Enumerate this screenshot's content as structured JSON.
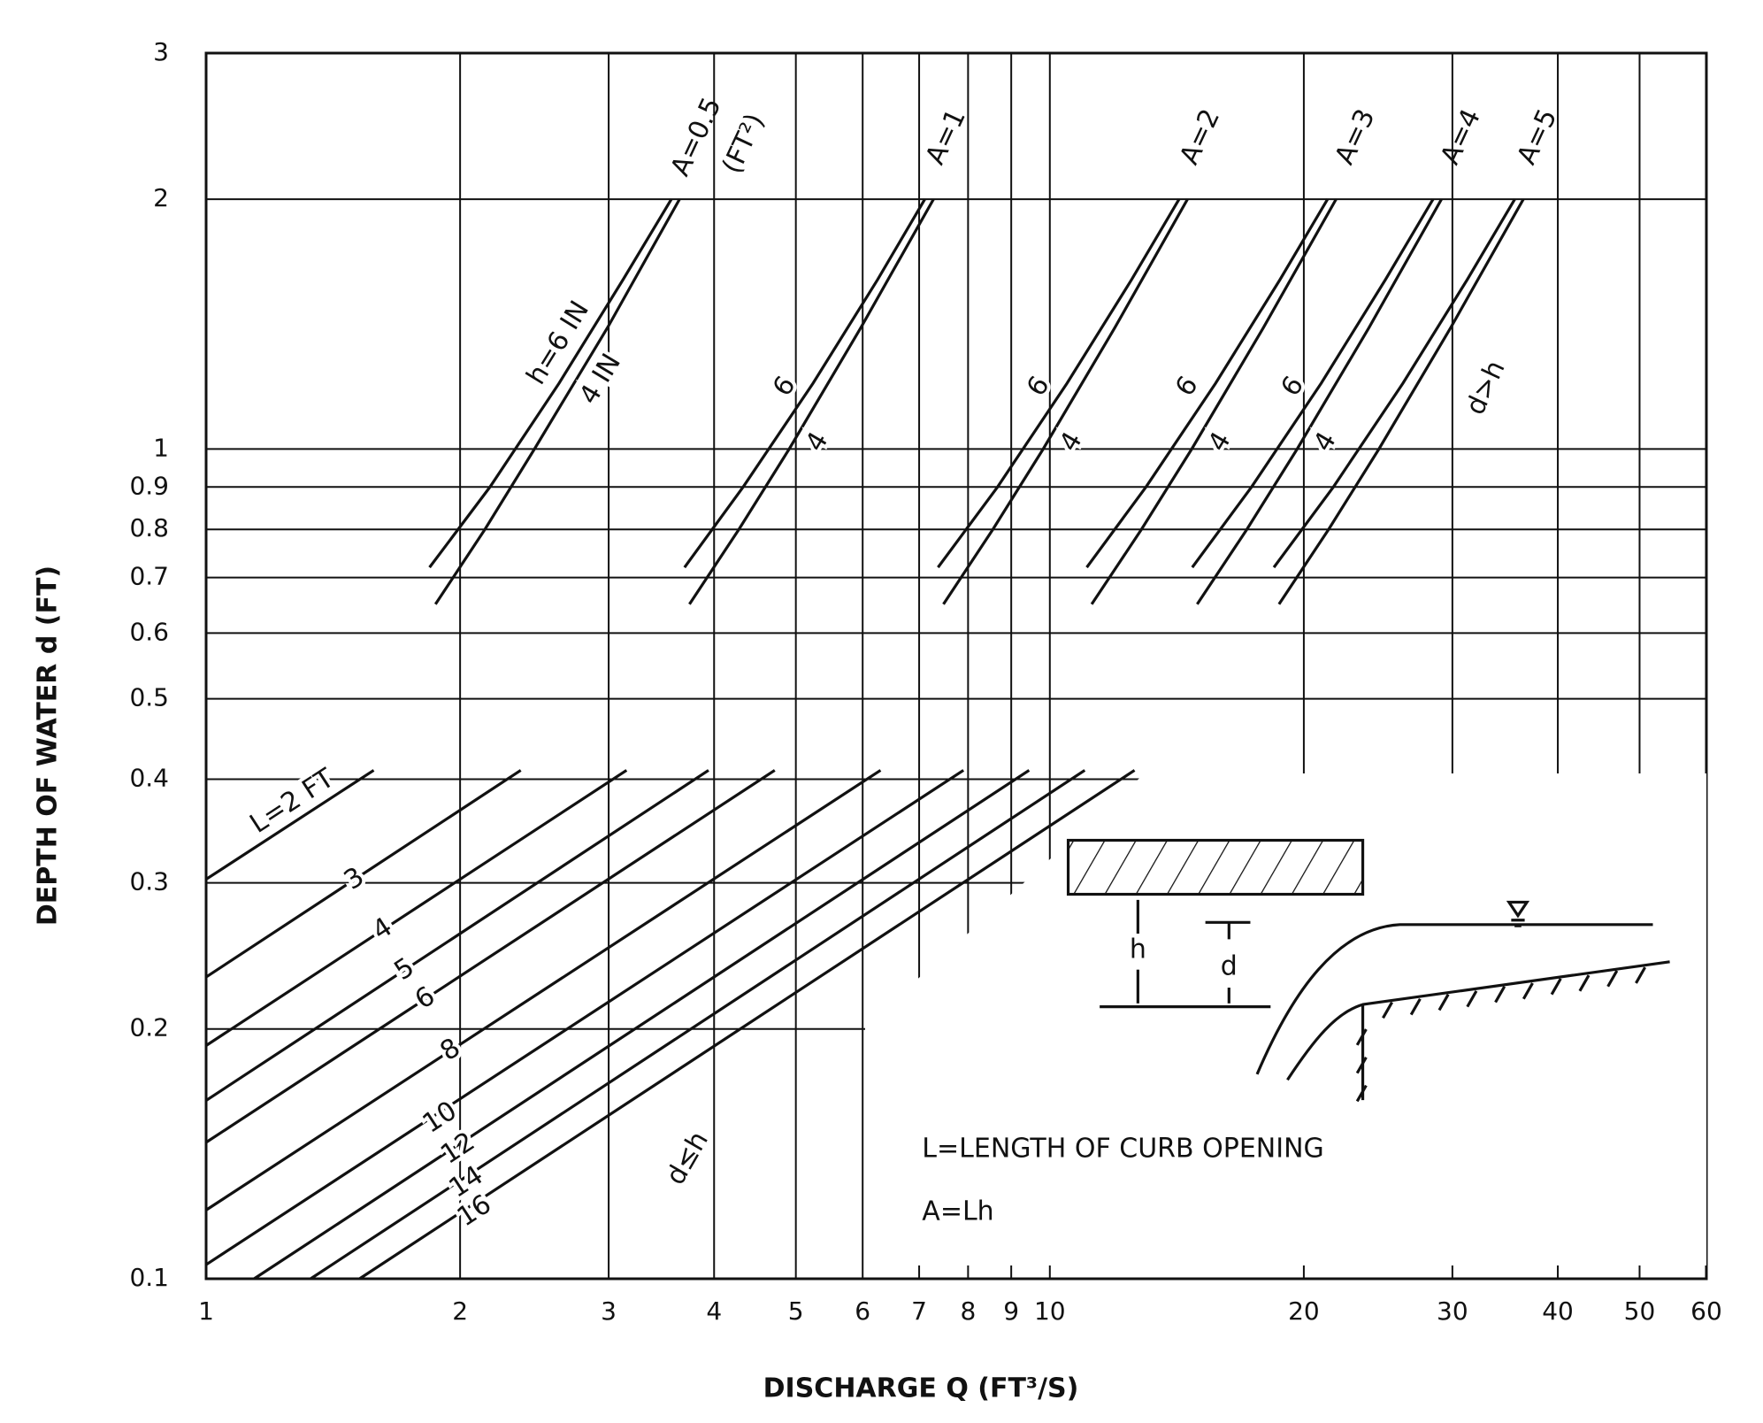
{
  "chart_data": {
    "type": "line",
    "x_label": "DISCHARGE Q (FT³/S)",
    "y_label": "DEPTH OF WATER d (FT)",
    "log_x": true,
    "log_y": true,
    "grid": true,
    "color": "#111111",
    "xlim": [
      1,
      60
    ],
    "ylim": [
      0.1,
      3
    ],
    "xticks": [
      1,
      2,
      3,
      4,
      5,
      6,
      7,
      8,
      9,
      10,
      20,
      30,
      40,
      50,
      60
    ],
    "yticks": [
      0.1,
      0.2,
      0.3,
      0.4,
      0.5,
      0.6,
      0.7,
      0.8,
      0.9,
      1,
      2,
      3
    ],
    "series": [
      {
        "name": "L=2 FT",
        "x": [
          1,
          1.58
        ],
        "values": [
          0.303,
          0.41
        ]
      },
      {
        "name": "3",
        "x": [
          1,
          2.36
        ],
        "values": [
          0.231,
          0.41
        ]
      },
      {
        "name": "4",
        "x": [
          1,
          3.15
        ],
        "values": [
          0.191,
          0.41
        ]
      },
      {
        "name": "5",
        "x": [
          1,
          3.94
        ],
        "values": [
          0.164,
          0.41
        ]
      },
      {
        "name": "6",
        "x": [
          1,
          4.72
        ],
        "values": [
          0.146,
          0.41
        ]
      },
      {
        "name": "8",
        "x": [
          1,
          6.3
        ],
        "values": [
          0.121,
          0.41
        ]
      },
      {
        "name": "10",
        "x": [
          1,
          7.9
        ],
        "values": [
          0.104,
          0.41
        ]
      },
      {
        "name": "12",
        "x": [
          1.14,
          9.45
        ],
        "values": [
          0.1,
          0.41
        ]
      },
      {
        "name": "14",
        "x": [
          1.33,
          11.0
        ],
        "values": [
          0.1,
          0.41
        ]
      },
      {
        "name": "16",
        "x": [
          1.52,
          12.6
        ],
        "values": [
          0.1,
          0.41
        ]
      },
      {
        "name": "h=6 IN",
        "x": [
          1.84,
          2.17,
          2.62,
          3.12,
          3.56
        ],
        "values": [
          0.72,
          0.9,
          1.2,
          1.6,
          2.0
        ]
      },
      {
        "name": "4 IN",
        "x": [
          1.87,
          2.14,
          2.45,
          2.99,
          3.64
        ],
        "values": [
          0.65,
          0.8,
          1.0,
          1.4,
          2.0
        ]
      },
      {
        "name": "6",
        "x": [
          3.69,
          4.33,
          5.24,
          6.25,
          7.11
        ],
        "values": [
          0.72,
          0.9,
          1.2,
          1.6,
          2.0
        ]
      },
      {
        "name": "4",
        "x": [
          3.74,
          4.28,
          4.91,
          5.97,
          7.28
        ],
        "values": [
          0.65,
          0.8,
          1.0,
          1.4,
          2.0
        ]
      },
      {
        "name": "6",
        "x": [
          7.37,
          8.67,
          10.48,
          12.5,
          14.23
        ],
        "values": [
          0.72,
          0.9,
          1.2,
          1.6,
          2.0
        ]
      },
      {
        "name": "4",
        "x": [
          7.48,
          8.56,
          9.82,
          11.94,
          14.56
        ],
        "values": [
          0.65,
          0.8,
          1.0,
          1.4,
          2.0
        ]
      },
      {
        "name": "6",
        "x": [
          11.06,
          13.0,
          15.72,
          18.74,
          21.34
        ],
        "values": [
          0.72,
          0.9,
          1.2,
          1.6,
          2.0
        ]
      },
      {
        "name": "4",
        "x": [
          11.21,
          12.84,
          14.73,
          17.91,
          21.84
        ],
        "values": [
          0.65,
          0.8,
          1.0,
          1.4,
          2.0
        ]
      },
      {
        "name": "6",
        "x": [
          14.75,
          17.34,
          20.97,
          24.99,
          28.46
        ],
        "values": [
          0.72,
          0.9,
          1.2,
          1.6,
          2.0
        ]
      },
      {
        "name": "4",
        "x": [
          14.95,
          17.12,
          19.64,
          23.89,
          29.12
        ],
        "values": [
          0.65,
          0.8,
          1.0,
          1.4,
          2.0
        ]
      },
      {
        "x": [
          18.43,
          21.68,
          26.21,
          31.24,
          35.57
        ],
        "values": [
          0.72,
          0.9,
          1.2,
          1.6,
          2.0
        ]
      },
      {
        "x": [
          18.69,
          21.4,
          24.55,
          29.86,
          36.41
        ],
        "values": [
          0.65,
          0.8,
          1.0,
          1.4,
          2.0
        ]
      }
    ],
    "annotations": [
      "A=0.5",
      "(FT²)",
      "A=1",
      "A=2",
      "A=3",
      "A=4",
      "A=5",
      "d>h",
      "d≤h",
      "L=LENGTH OF CURB OPENING",
      "A=Lh",
      "h",
      "d"
    ]
  }
}
